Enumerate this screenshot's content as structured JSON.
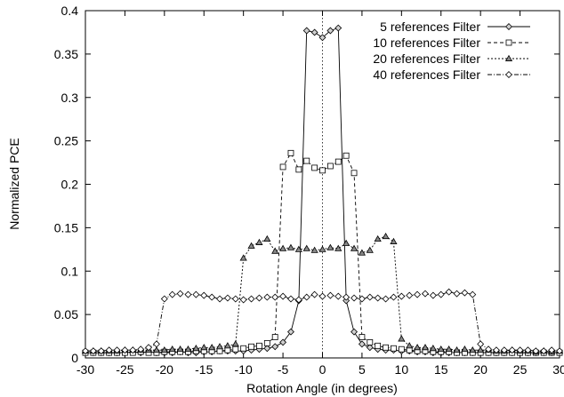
{
  "chart_data": {
    "type": "line",
    "title": "",
    "xlabel": "Rotation Angle (in degrees)",
    "ylabel": "Normalized PCE",
    "xlim": [
      -30,
      30
    ],
    "ylim": [
      0,
      0.4
    ],
    "xticks": [
      -30,
      -25,
      -20,
      -15,
      -10,
      -5,
      0,
      5,
      10,
      15,
      20,
      25,
      30
    ],
    "yticks": [
      0,
      0.05,
      0.1,
      0.15,
      0.2,
      0.25,
      0.3,
      0.35,
      0.4
    ],
    "xtick_labels": [
      "-30",
      "-25",
      "-20",
      "-15",
      "-10",
      "-5",
      "0",
      "5",
      "10",
      "15",
      "20",
      "25",
      "30"
    ],
    "ytick_labels": [
      "0",
      "0.05",
      "0.1",
      "0.15",
      "0.2",
      "0.25",
      "0.3",
      "0.35",
      "0.4"
    ],
    "grid": false,
    "legend_position": "top-right",
    "reference_line": {
      "x": 0,
      "style": "dotted"
    },
    "series": [
      {
        "name": "5 references Filter",
        "marker": "diamond",
        "dash": "solid",
        "x": [
          -30,
          -29,
          -28,
          -27,
          -26,
          -25,
          -24,
          -23,
          -22,
          -21,
          -20,
          -19,
          -18,
          -17,
          -16,
          -15,
          -14,
          -13,
          -12,
          -11,
          -10,
          -9,
          -8,
          -7,
          -6,
          -5,
          -4,
          -3,
          -2,
          -1,
          0,
          1,
          2,
          3,
          4,
          5,
          6,
          7,
          8,
          9,
          10,
          11,
          12,
          13,
          14,
          15,
          16,
          17,
          18,
          19,
          20,
          21,
          22,
          23,
          24,
          25,
          26,
          27,
          28,
          29,
          30
        ],
        "y": [
          0.006,
          0.006,
          0.006,
          0.006,
          0.006,
          0.006,
          0.007,
          0.006,
          0.007,
          0.006,
          0.006,
          0.006,
          0.007,
          0.006,
          0.006,
          0.007,
          0.007,
          0.008,
          0.008,
          0.008,
          0.008,
          0.009,
          0.01,
          0.011,
          0.013,
          0.018,
          0.03,
          0.066,
          0.377,
          0.375,
          0.369,
          0.377,
          0.38,
          0.066,
          0.03,
          0.016,
          0.012,
          0.01,
          0.009,
          0.009,
          0.008,
          0.008,
          0.007,
          0.007,
          0.006,
          0.006,
          0.006,
          0.006,
          0.006,
          0.006,
          0.006,
          0.006,
          0.006,
          0.006,
          0.006,
          0.006,
          0.006,
          0.006,
          0.006,
          0.006,
          0.006
        ]
      },
      {
        "name": "10 references Filter",
        "marker": "square",
        "dash": "dashed",
        "x": [
          -30,
          -29,
          -28,
          -27,
          -26,
          -25,
          -24,
          -23,
          -22,
          -21,
          -20,
          -19,
          -18,
          -17,
          -16,
          -15,
          -14,
          -13,
          -12,
          -11,
          -10,
          -9,
          -8,
          -7,
          -6,
          -5,
          -4,
          -3,
          -2,
          -1,
          0,
          1,
          2,
          3,
          4,
          5,
          6,
          7,
          8,
          9,
          10,
          11,
          12,
          13,
          14,
          15,
          16,
          17,
          18,
          19,
          20,
          21,
          22,
          23,
          24,
          25,
          26,
          27,
          28,
          29,
          30
        ],
        "y": [
          0.006,
          0.006,
          0.006,
          0.006,
          0.006,
          0.006,
          0.006,
          0.007,
          0.006,
          0.006,
          0.007,
          0.007,
          0.007,
          0.007,
          0.008,
          0.008,
          0.008,
          0.008,
          0.009,
          0.01,
          0.011,
          0.013,
          0.014,
          0.017,
          0.024,
          0.22,
          0.236,
          0.217,
          0.227,
          0.219,
          0.216,
          0.221,
          0.226,
          0.233,
          0.213,
          0.024,
          0.018,
          0.014,
          0.012,
          0.011,
          0.01,
          0.009,
          0.008,
          0.008,
          0.007,
          0.007,
          0.007,
          0.006,
          0.006,
          0.006,
          0.006,
          0.006,
          0.006,
          0.006,
          0.006,
          0.006,
          0.006,
          0.006,
          0.006,
          0.006,
          0.006
        ]
      },
      {
        "name": "20 references Filter",
        "marker": "triangle",
        "dash": "short-dashed",
        "x": [
          -30,
          -29,
          -28,
          -27,
          -26,
          -25,
          -24,
          -23,
          -22,
          -21,
          -20,
          -19,
          -18,
          -17,
          -16,
          -15,
          -14,
          -13,
          -12,
          -11,
          -10,
          -9,
          -8,
          -7,
          -6,
          -5,
          -4,
          -3,
          -2,
          -1,
          0,
          1,
          2,
          3,
          4,
          5,
          6,
          7,
          8,
          9,
          10,
          11,
          12,
          13,
          14,
          15,
          16,
          17,
          18,
          19,
          20,
          21,
          22,
          23,
          24,
          25,
          26,
          27,
          28,
          29,
          30
        ],
        "y": [
          0.008,
          0.008,
          0.008,
          0.008,
          0.008,
          0.009,
          0.009,
          0.009,
          0.009,
          0.009,
          0.009,
          0.01,
          0.01,
          0.01,
          0.011,
          0.012,
          0.012,
          0.013,
          0.014,
          0.016,
          0.115,
          0.129,
          0.133,
          0.137,
          0.123,
          0.126,
          0.127,
          0.125,
          0.126,
          0.124,
          0.125,
          0.127,
          0.126,
          0.132,
          0.126,
          0.121,
          0.124,
          0.137,
          0.14,
          0.134,
          0.022,
          0.014,
          0.012,
          0.012,
          0.011,
          0.01,
          0.01,
          0.009,
          0.01,
          0.009,
          0.009,
          0.009,
          0.008,
          0.008,
          0.009,
          0.008,
          0.008,
          0.007,
          0.008,
          0.007,
          0.008
        ]
      },
      {
        "name": "40 references Filter",
        "marker": "diamond-open",
        "dash": "dash-dot",
        "x": [
          -30,
          -29,
          -28,
          -27,
          -26,
          -25,
          -24,
          -23,
          -22,
          -21,
          -20,
          -19,
          -18,
          -17,
          -16,
          -15,
          -14,
          -13,
          -12,
          -11,
          -10,
          -9,
          -8,
          -7,
          -6,
          -5,
          -4,
          -3,
          -2,
          -1,
          0,
          1,
          2,
          3,
          4,
          5,
          6,
          7,
          8,
          9,
          10,
          11,
          12,
          13,
          14,
          15,
          16,
          17,
          18,
          19,
          20,
          21,
          22,
          23,
          24,
          25,
          26,
          27,
          28,
          29,
          30
        ],
        "y": [
          0.008,
          0.008,
          0.008,
          0.009,
          0.009,
          0.009,
          0.009,
          0.01,
          0.012,
          0.016,
          0.068,
          0.073,
          0.074,
          0.073,
          0.073,
          0.072,
          0.07,
          0.068,
          0.069,
          0.068,
          0.067,
          0.068,
          0.069,
          0.07,
          0.07,
          0.071,
          0.068,
          0.067,
          0.07,
          0.073,
          0.071,
          0.072,
          0.071,
          0.07,
          0.069,
          0.068,
          0.07,
          0.069,
          0.068,
          0.07,
          0.071,
          0.072,
          0.073,
          0.074,
          0.072,
          0.073,
          0.076,
          0.074,
          0.075,
          0.073,
          0.016,
          0.01,
          0.009,
          0.009,
          0.009,
          0.009,
          0.009,
          0.008,
          0.008,
          0.009,
          0.008
        ]
      }
    ]
  }
}
